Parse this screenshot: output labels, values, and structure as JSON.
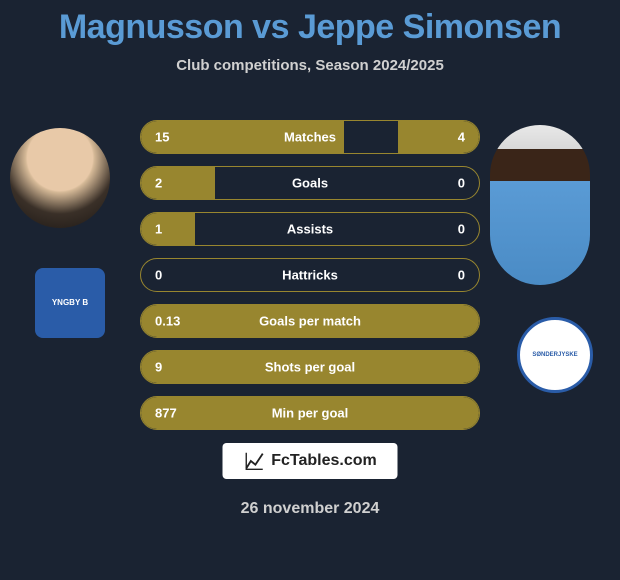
{
  "title": "Magnusson vs Jeppe Simonsen",
  "subtitle": "Club competitions, Season 2024/2025",
  "date": "26 november 2024",
  "brand": "FcTables.com",
  "colors": {
    "background": "#1a2332",
    "title": "#5a9bd5",
    "bar_fill": "#98862f",
    "text_light": "#d0d0d0",
    "text_white": "#ffffff"
  },
  "club_left_label": "YNGBY B",
  "club_right_label": "SØNDERJYSKE",
  "stats": [
    {
      "label": "Matches",
      "left_val": "15",
      "right_val": "4",
      "left_pct": 60,
      "right_pct": 24,
      "full": false
    },
    {
      "label": "Goals",
      "left_val": "2",
      "right_val": "0",
      "left_pct": 22,
      "right_pct": 0,
      "full": false
    },
    {
      "label": "Assists",
      "left_val": "1",
      "right_val": "0",
      "left_pct": 16,
      "right_pct": 0,
      "full": false
    },
    {
      "label": "Hattricks",
      "left_val": "0",
      "right_val": "0",
      "left_pct": 0,
      "right_pct": 0,
      "full": false
    },
    {
      "label": "Goals per match",
      "left_val": "0.13",
      "right_val": "",
      "left_pct": 100,
      "right_pct": 0,
      "full": true
    },
    {
      "label": "Shots per goal",
      "left_val": "9",
      "right_val": "",
      "left_pct": 100,
      "right_pct": 0,
      "full": true
    },
    {
      "label": "Min per goal",
      "left_val": "877",
      "right_val": "",
      "left_pct": 100,
      "right_pct": 0,
      "full": true
    }
  ]
}
